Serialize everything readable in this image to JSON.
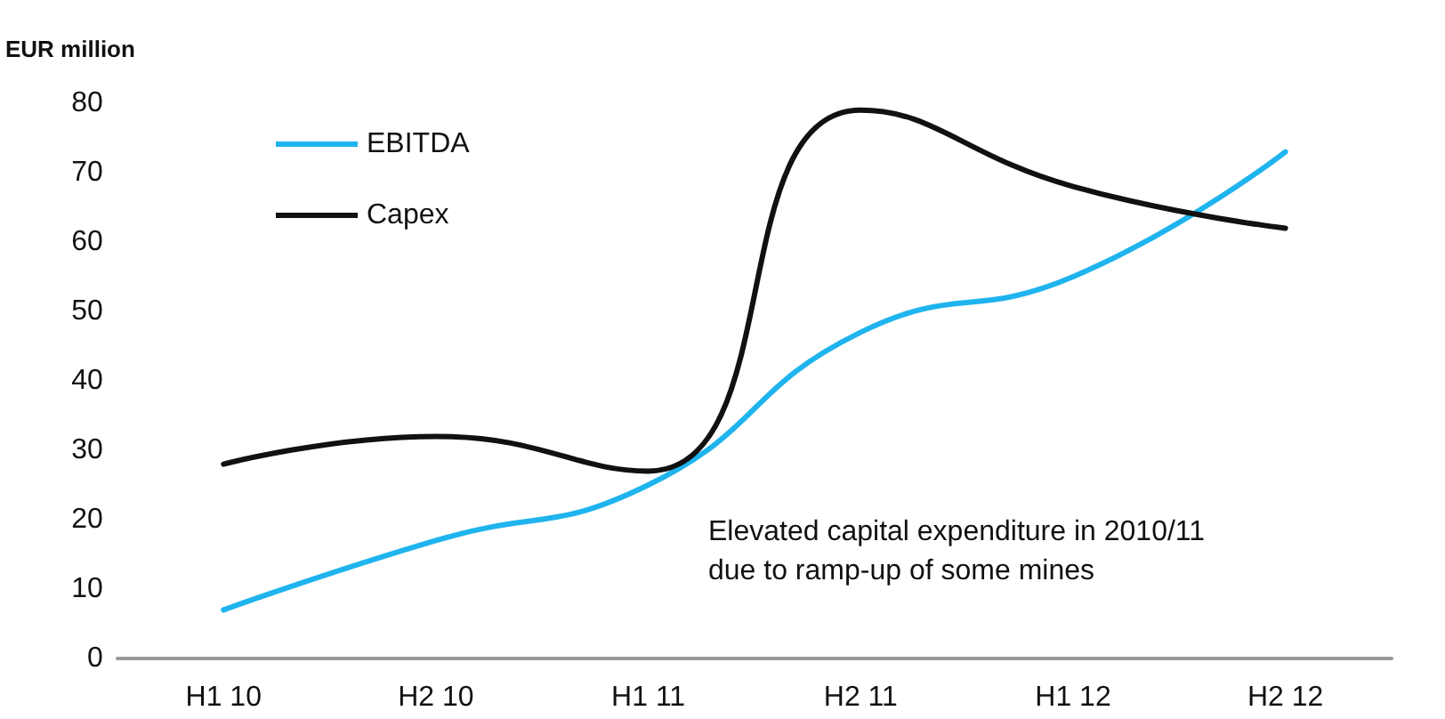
{
  "chart_data": {
    "type": "line",
    "ylabel": "EUR million",
    "categories": [
      "H1 10",
      "H2 10",
      "H1 11",
      "H2 11",
      "H1 12",
      "H2 12"
    ],
    "series": [
      {
        "name": "EBITDA",
        "color": "#1fb4ee",
        "values": [
          7,
          17,
          25,
          47,
          55,
          73
        ]
      },
      {
        "name": "Capex",
        "color": "#111111",
        "values": [
          28,
          32,
          27,
          79,
          68,
          62
        ]
      }
    ],
    "ylim": [
      0,
      80
    ],
    "yticks": [
      0,
      10,
      20,
      30,
      40,
      50,
      60,
      70,
      80
    ],
    "grid": false,
    "legend": "top left",
    "marker": "none",
    "line_style": "solid",
    "annotations": [
      "Elevated capital expenditure in 2010/11\ndue to ramp-up of some mines"
    ]
  }
}
